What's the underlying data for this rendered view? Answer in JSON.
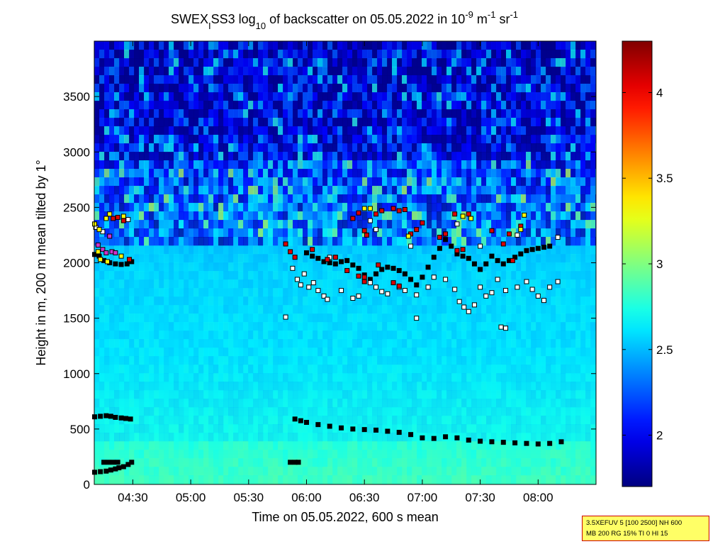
{
  "chart_data": {
    "type": "heatmap",
    "title": {
      "parts": [
        {
          "text": "SWEX",
          "shift": "base"
        },
        {
          "text": "I",
          "shift": "sub"
        },
        {
          "text": "SS3 log",
          "shift": "base"
        },
        {
          "text": "10",
          "shift": "sub"
        },
        {
          "text": " of backscatter on 05.05.2022 in 10",
          "shift": "base"
        },
        {
          "text": "-9",
          "shift": "sup"
        },
        {
          "text": " m",
          "shift": "base"
        },
        {
          "text": "-1",
          "shift": "sup"
        },
        {
          "text": " sr",
          "shift": "base"
        },
        {
          "text": "-1",
          "shift": "sup"
        }
      ]
    },
    "xlabel": "Time on 05.05.2022, 600 s mean",
    "ylabel": "Height in m, 200 m mean tilted by 1°",
    "x_range_hours": [
      4.167,
      8.5
    ],
    "xticks": [
      {
        "value": 4.5,
        "label": "04:30"
      },
      {
        "value": 5.0,
        "label": "05:00"
      },
      {
        "value": 5.5,
        "label": "05:30"
      },
      {
        "value": 6.0,
        "label": "06:00"
      },
      {
        "value": 6.5,
        "label": "06:30"
      },
      {
        "value": 7.0,
        "label": "07:00"
      },
      {
        "value": 7.5,
        "label": "07:30"
      },
      {
        "value": 8.0,
        "label": "08:00"
      }
    ],
    "ylim": [
      0,
      4000
    ],
    "yticks": [
      0,
      500,
      1000,
      1500,
      2000,
      2500,
      3000,
      3500
    ],
    "colorbar": {
      "range": [
        1.7,
        4.3
      ],
      "ticks": [
        {
          "value": 2,
          "label": "2"
        },
        {
          "value": 2.5,
          "label": "2.5"
        },
        {
          "value": 3,
          "label": "3"
        },
        {
          "value": 3.5,
          "label": "3.5"
        },
        {
          "value": 4,
          "label": "4"
        }
      ],
      "colormap": "jet"
    },
    "field_description_levels": {
      "surface_layer": 2.85,
      "mixed_layer": 2.6,
      "upper_layer": 2.55,
      "free_troposphere": 1.8
    },
    "marker_colors": {
      "white": "#ffffff",
      "black": "#000000",
      "red": "#dd0000",
      "yellow": "#ffff00",
      "magenta": "#cc33cc"
    },
    "layer_markers": {
      "black_low_early": [
        [
          4.17,
          610
        ],
        [
          4.22,
          615
        ],
        [
          4.27,
          620
        ],
        [
          4.31,
          615
        ],
        [
          4.35,
          605
        ],
        [
          4.4,
          600
        ],
        [
          4.44,
          595
        ],
        [
          4.48,
          590
        ]
      ],
      "black_low_late": [
        [
          5.9,
          590
        ],
        [
          5.95,
          575
        ],
        [
          6.0,
          560
        ],
        [
          6.1,
          540
        ],
        [
          6.2,
          525
        ],
        [
          6.3,
          510
        ],
        [
          6.4,
          500
        ],
        [
          6.5,
          495
        ],
        [
          6.6,
          490
        ],
        [
          6.7,
          480
        ],
        [
          6.8,
          470
        ],
        [
          6.9,
          450
        ],
        [
          7.0,
          420
        ],
        [
          7.1,
          415
        ],
        [
          7.2,
          430
        ],
        [
          7.3,
          420
        ],
        [
          7.4,
          400
        ],
        [
          7.5,
          390
        ],
        [
          7.6,
          385
        ],
        [
          7.7,
          380
        ],
        [
          7.8,
          375
        ],
        [
          7.9,
          370
        ],
        [
          8.0,
          365
        ],
        [
          8.1,
          370
        ],
        [
          8.2,
          385
        ]
      ],
      "black_100m": [
        [
          4.17,
          110
        ],
        [
          4.22,
          115
        ],
        [
          4.27,
          120
        ],
        [
          4.31,
          130
        ],
        [
          4.35,
          140
        ],
        [
          4.38,
          150
        ],
        [
          4.42,
          160
        ],
        [
          4.46,
          180
        ],
        [
          4.49,
          200
        ]
      ],
      "black_200m": [
        [
          4.25,
          200
        ],
        [
          4.29,
          200
        ],
        [
          4.33,
          200
        ],
        [
          4.37,
          200
        ],
        [
          5.86,
          200
        ],
        [
          5.9,
          200
        ],
        [
          5.93,
          200
        ]
      ],
      "black_2000": [
        [
          4.17,
          2075
        ],
        [
          4.21,
          2060
        ],
        [
          4.25,
          2020
        ],
        [
          4.3,
          2000
        ],
        [
          4.35,
          1990
        ],
        [
          4.4,
          1985
        ],
        [
          4.45,
          1990
        ],
        [
          4.49,
          2010
        ],
        [
          6.0,
          2090
        ],
        [
          6.05,
          2060
        ],
        [
          6.1,
          2040
        ],
        [
          6.15,
          2010
        ],
        [
          6.2,
          2000
        ],
        [
          6.25,
          1990
        ],
        [
          6.3,
          2010
        ],
        [
          6.35,
          2020
        ],
        [
          6.4,
          1980
        ],
        [
          6.45,
          1950
        ],
        [
          6.5,
          1890
        ],
        [
          6.55,
          1850
        ],
        [
          6.6,
          1900
        ],
        [
          6.65,
          1940
        ],
        [
          6.7,
          1960
        ],
        [
          6.75,
          1950
        ],
        [
          6.8,
          1930
        ],
        [
          6.85,
          1900
        ],
        [
          6.9,
          1850
        ],
        [
          6.95,
          1800
        ],
        [
          7.0,
          1870
        ],
        [
          7.05,
          1960
        ],
        [
          7.1,
          2050
        ],
        [
          7.15,
          2130
        ],
        [
          7.2,
          2210
        ],
        [
          7.25,
          2150
        ],
        [
          7.3,
          2080
        ],
        [
          7.35,
          2060
        ],
        [
          7.4,
          2040
        ],
        [
          7.45,
          1990
        ],
        [
          7.5,
          1940
        ],
        [
          7.55,
          1990
        ],
        [
          7.6,
          2060
        ],
        [
          7.65,
          2020
        ],
        [
          7.7,
          1990
        ],
        [
          7.75,
          2020
        ],
        [
          7.8,
          2050
        ],
        [
          7.85,
          2080
        ],
        [
          7.9,
          2110
        ],
        [
          7.95,
          2120
        ],
        [
          8.0,
          2130
        ],
        [
          8.05,
          2140
        ],
        [
          8.1,
          2150
        ]
      ],
      "white_scatter": [
        [
          4.18,
          2320
        ],
        [
          4.24,
          2280
        ],
        [
          4.46,
          2390
        ],
        [
          5.88,
          1950
        ],
        [
          5.92,
          1850
        ],
        [
          5.95,
          1800
        ],
        [
          5.98,
          1900
        ],
        [
          6.02,
          1780
        ],
        [
          6.06,
          1820
        ],
        [
          6.1,
          1750
        ],
        [
          6.15,
          1700
        ],
        [
          6.18,
          1670
        ],
        [
          6.3,
          1750
        ],
        [
          6.4,
          1680
        ],
        [
          6.45,
          1700
        ],
        [
          6.55,
          1820
        ],
        [
          6.6,
          1780
        ],
        [
          6.65,
          1740
        ],
        [
          6.7,
          1720
        ],
        [
          6.8,
          1780
        ],
        [
          6.85,
          1750
        ],
        [
          6.95,
          1710
        ],
        [
          7.05,
          1780
        ],
        [
          7.1,
          1870
        ],
        [
          7.2,
          1850
        ],
        [
          7.28,
          1760
        ],
        [
          7.32,
          1650
        ],
        [
          7.36,
          1600
        ],
        [
          7.4,
          1560
        ],
        [
          7.45,
          1620
        ],
        [
          7.5,
          1780
        ],
        [
          7.55,
          1700
        ],
        [
          7.6,
          1730
        ],
        [
          7.65,
          1850
        ],
        [
          7.72,
          1750
        ],
        [
          7.82,
          1780
        ],
        [
          7.9,
          1830
        ],
        [
          7.95,
          1760
        ],
        [
          8.0,
          1700
        ],
        [
          8.05,
          1660
        ],
        [
          8.1,
          1780
        ],
        [
          8.17,
          1830
        ],
        [
          5.82,
          1510
        ],
        [
          6.95,
          1500
        ],
        [
          7.68,
          1420
        ],
        [
          7.72,
          1410
        ],
        [
          8.17,
          2230
        ],
        [
          7.82,
          2250
        ],
        [
          7.5,
          2150
        ],
        [
          7.3,
          2350
        ],
        [
          6.9,
          2150
        ],
        [
          6.6,
          2300
        ],
        [
          6.55,
          2380
        ],
        [
          6.2,
          2050
        ]
      ],
      "red_scatter": [
        [
          4.33,
          2400
        ],
        [
          4.37,
          2410
        ],
        [
          4.42,
          2380
        ],
        [
          4.47,
          2030
        ],
        [
          5.82,
          2170
        ],
        [
          5.86,
          2100
        ],
        [
          5.9,
          2050
        ],
        [
          6.05,
          2120
        ],
        [
          6.18,
          2030
        ],
        [
          6.25,
          2050
        ],
        [
          6.35,
          1930
        ],
        [
          6.45,
          1880
        ],
        [
          6.5,
          1870
        ],
        [
          6.4,
          2400
        ],
        [
          6.45,
          2450
        ],
        [
          6.6,
          2440
        ],
        [
          6.65,
          2470
        ],
        [
          6.75,
          2490
        ],
        [
          6.8,
          2470
        ],
        [
          6.85,
          2480
        ],
        [
          6.52,
          2250
        ],
        [
          6.5,
          2290
        ],
        [
          6.62,
          1980
        ],
        [
          6.9,
          2260
        ],
        [
          6.95,
          2300
        ],
        [
          7.0,
          2360
        ],
        [
          7.15,
          2230
        ],
        [
          7.2,
          2260
        ],
        [
          7.3,
          2110
        ],
        [
          7.35,
          2120
        ],
        [
          7.28,
          2440
        ],
        [
          7.4,
          2440
        ],
        [
          7.6,
          2290
        ],
        [
          7.7,
          2170
        ],
        [
          7.78,
          2020
        ],
        [
          7.75,
          2260
        ],
        [
          7.85,
          2330
        ],
        [
          6.5,
          1830
        ],
        [
          6.75,
          1820
        ],
        [
          6.8,
          1790
        ]
      ],
      "yellow_scatter": [
        [
          4.17,
          2350
        ],
        [
          4.21,
          2300
        ],
        [
          4.27,
          2400
        ],
        [
          4.3,
          2440
        ],
        [
          4.42,
          2420
        ],
        [
          4.2,
          2100
        ],
        [
          4.22,
          2030
        ],
        [
          4.28,
          2010
        ],
        [
          4.4,
          2060
        ],
        [
          6.5,
          2490
        ],
        [
          6.55,
          2490
        ],
        [
          6.88,
          2240
        ],
        [
          7.35,
          2420
        ],
        [
          7.42,
          2400
        ],
        [
          7.85,
          2300
        ],
        [
          7.88,
          2430
        ]
      ],
      "magenta_scatter": [
        [
          4.2,
          2160
        ],
        [
          4.24,
          2120
        ],
        [
          4.27,
          2090
        ],
        [
          4.3,
          2240
        ],
        [
          4.32,
          2100
        ],
        [
          4.35,
          2090
        ]
      ]
    }
  },
  "info_box": {
    "line1": "3.5XEFUV 5 [100 2500] NH 600",
    "line2": "MB 200 RG 15% TI 0 HI 15"
  }
}
